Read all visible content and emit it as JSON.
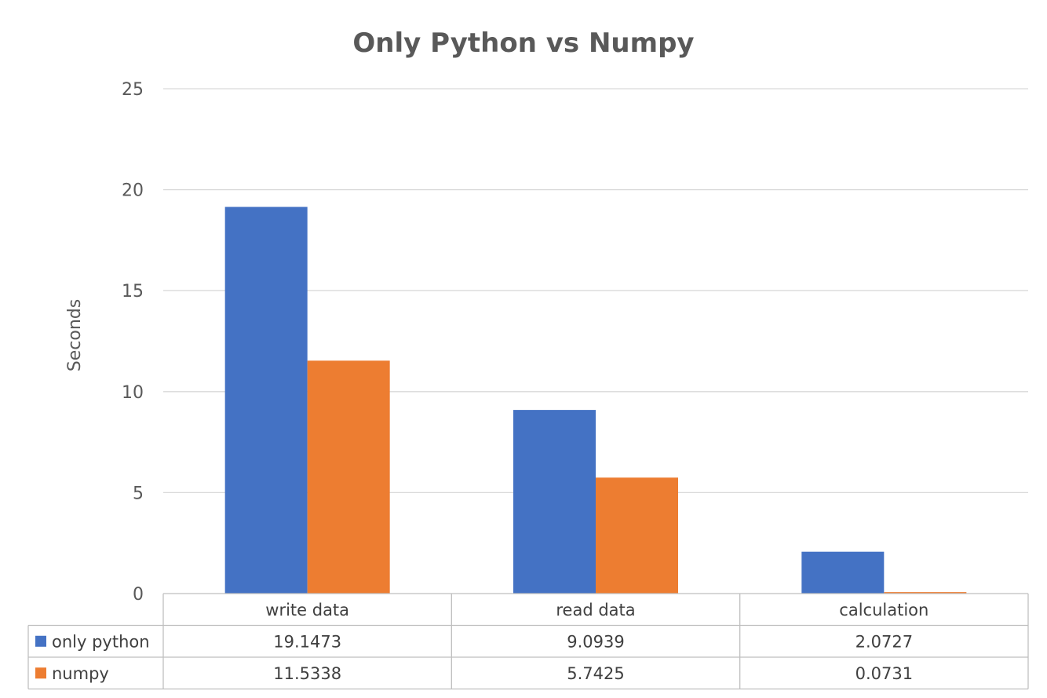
{
  "chart_data": {
    "type": "bar",
    "title": "Only Python vs Numpy",
    "ylabel": "Seconds",
    "xlabel": "",
    "categories": [
      "write data",
      "read data",
      "calculation"
    ],
    "series": [
      {
        "name": "only python",
        "color": "#4472C4",
        "values": [
          19.1473,
          9.0939,
          2.0727
        ],
        "labels": [
          "19.1473",
          "9.0939",
          "2.0727"
        ]
      },
      {
        "name": "numpy",
        "color": "#ED7D31",
        "values": [
          11.5338,
          5.7425,
          0.0731
        ],
        "labels": [
          "11.5338",
          "5.7425",
          "0.0731"
        ]
      }
    ],
    "ylim": [
      0,
      25
    ],
    "yticks": [
      0,
      5,
      10,
      15,
      20,
      25
    ],
    "grid": true,
    "legend_placement": "data-table",
    "data_table": true
  }
}
